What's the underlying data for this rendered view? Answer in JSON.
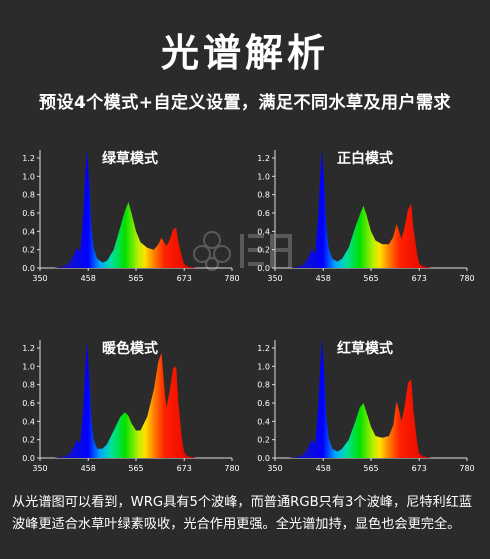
{
  "header": {
    "title": "光谱解析",
    "subtitle": "预设4个模式+自定义设置，满足不同水草及用户需求"
  },
  "footer": {
    "text": "从光谱图可以看到，WRG具有5个波峰，而普通RGB只有3个波峰，尼特利红蓝波峰更适合水草叶绿素吸收，光合作用更强。全光谱加持，显色也会更完全。"
  },
  "chart_data": [
    {
      "type": "area",
      "title": "绿草模式",
      "xlim": [
        350,
        780
      ],
      "ylim": [
        0,
        1.2
      ],
      "x_ticks": [
        "350",
        "458",
        "565",
        "673",
        "780"
      ],
      "y_ticks": [
        "0.0",
        "0.2",
        "0.4",
        "0.6",
        "0.8",
        "1.0",
        "1.2"
      ],
      "x": [
        350,
        380,
        400,
        415,
        425,
        432,
        440,
        447,
        452,
        455,
        460,
        465,
        470,
        478,
        490,
        500,
        515,
        530,
        540,
        548,
        555,
        565,
        575,
        590,
        605,
        615,
        622,
        628,
        633,
        640,
        648,
        655,
        660,
        668,
        673,
        680,
        690,
        700,
        780
      ],
      "y": [
        0,
        0,
        0.01,
        0.05,
        0.14,
        0.22,
        0.18,
        0.6,
        1.05,
        1.3,
        0.95,
        0.45,
        0.22,
        0.1,
        0.06,
        0.08,
        0.2,
        0.45,
        0.62,
        0.72,
        0.6,
        0.4,
        0.28,
        0.22,
        0.2,
        0.26,
        0.33,
        0.28,
        0.24,
        0.3,
        0.42,
        0.44,
        0.28,
        0.12,
        0.04,
        0.02,
        0.01,
        0,
        0
      ]
    },
    {
      "type": "area",
      "title": "正白模式",
      "xlim": [
        350,
        780
      ],
      "ylim": [
        0,
        1.2
      ],
      "x_ticks": [
        "350",
        "458",
        "565",
        "673",
        "780"
      ],
      "y_ticks": [
        "0.0",
        "0.2",
        "0.4",
        "0.6",
        "0.8",
        "1.0",
        "1.2"
      ],
      "x": [
        350,
        380,
        400,
        415,
        425,
        432,
        440,
        447,
        452,
        455,
        460,
        465,
        470,
        478,
        490,
        500,
        515,
        530,
        540,
        548,
        555,
        565,
        575,
        590,
        605,
        615,
        622,
        628,
        633,
        640,
        648,
        655,
        660,
        668,
        673,
        680,
        690,
        700,
        780
      ],
      "y": [
        0,
        0,
        0.01,
        0.04,
        0.12,
        0.2,
        0.16,
        0.58,
        1.05,
        1.3,
        0.95,
        0.45,
        0.22,
        0.1,
        0.07,
        0.1,
        0.22,
        0.45,
        0.58,
        0.68,
        0.58,
        0.4,
        0.3,
        0.26,
        0.26,
        0.34,
        0.48,
        0.4,
        0.32,
        0.44,
        0.64,
        0.7,
        0.44,
        0.16,
        0.05,
        0.02,
        0.01,
        0,
        0
      ]
    },
    {
      "type": "area",
      "title": "暖色模式",
      "xlim": [
        350,
        780
      ],
      "ylim": [
        0,
        1.2
      ],
      "x_ticks": [
        "350",
        "458",
        "565",
        "673",
        "780"
      ],
      "y_ticks": [
        "0.0",
        "0.2",
        "0.4",
        "0.6",
        "0.8",
        "1.0",
        "1.2"
      ],
      "x": [
        350,
        380,
        400,
        415,
        425,
        432,
        440,
        447,
        452,
        455,
        460,
        465,
        470,
        478,
        490,
        500,
        515,
        530,
        540,
        548,
        555,
        565,
        575,
        590,
        605,
        615,
        622,
        628,
        633,
        640,
        648,
        655,
        660,
        668,
        673,
        680,
        690,
        700,
        780
      ],
      "y": [
        0,
        0,
        0.01,
        0.04,
        0.12,
        0.2,
        0.16,
        0.55,
        1.02,
        1.28,
        0.9,
        0.42,
        0.2,
        0.1,
        0.1,
        0.15,
        0.3,
        0.45,
        0.5,
        0.46,
        0.38,
        0.3,
        0.3,
        0.45,
        0.75,
        1.05,
        1.15,
        0.8,
        0.55,
        0.72,
        0.98,
        1.0,
        0.6,
        0.2,
        0.06,
        0.02,
        0.01,
        0,
        0
      ]
    },
    {
      "type": "area",
      "title": "红草模式",
      "xlim": [
        350,
        780
      ],
      "ylim": [
        0,
        1.2
      ],
      "x_ticks": [
        "350",
        "458",
        "565",
        "673",
        "780"
      ],
      "y_ticks": [
        "0.0",
        "0.2",
        "0.4",
        "0.6",
        "0.8",
        "1.0",
        "1.2"
      ],
      "x": [
        350,
        380,
        400,
        415,
        425,
        432,
        440,
        447,
        452,
        455,
        460,
        465,
        470,
        478,
        490,
        500,
        515,
        530,
        540,
        548,
        555,
        565,
        575,
        590,
        605,
        615,
        622,
        628,
        633,
        640,
        648,
        655,
        660,
        668,
        673,
        680,
        690,
        700,
        780
      ],
      "y": [
        0,
        0,
        0.01,
        0.04,
        0.12,
        0.2,
        0.16,
        0.58,
        1.05,
        1.3,
        0.95,
        0.45,
        0.22,
        0.1,
        0.07,
        0.1,
        0.2,
        0.4,
        0.55,
        0.6,
        0.5,
        0.34,
        0.24,
        0.22,
        0.24,
        0.36,
        0.62,
        0.52,
        0.4,
        0.55,
        0.82,
        0.86,
        0.52,
        0.18,
        0.05,
        0.02,
        0.01,
        0,
        0
      ]
    }
  ]
}
